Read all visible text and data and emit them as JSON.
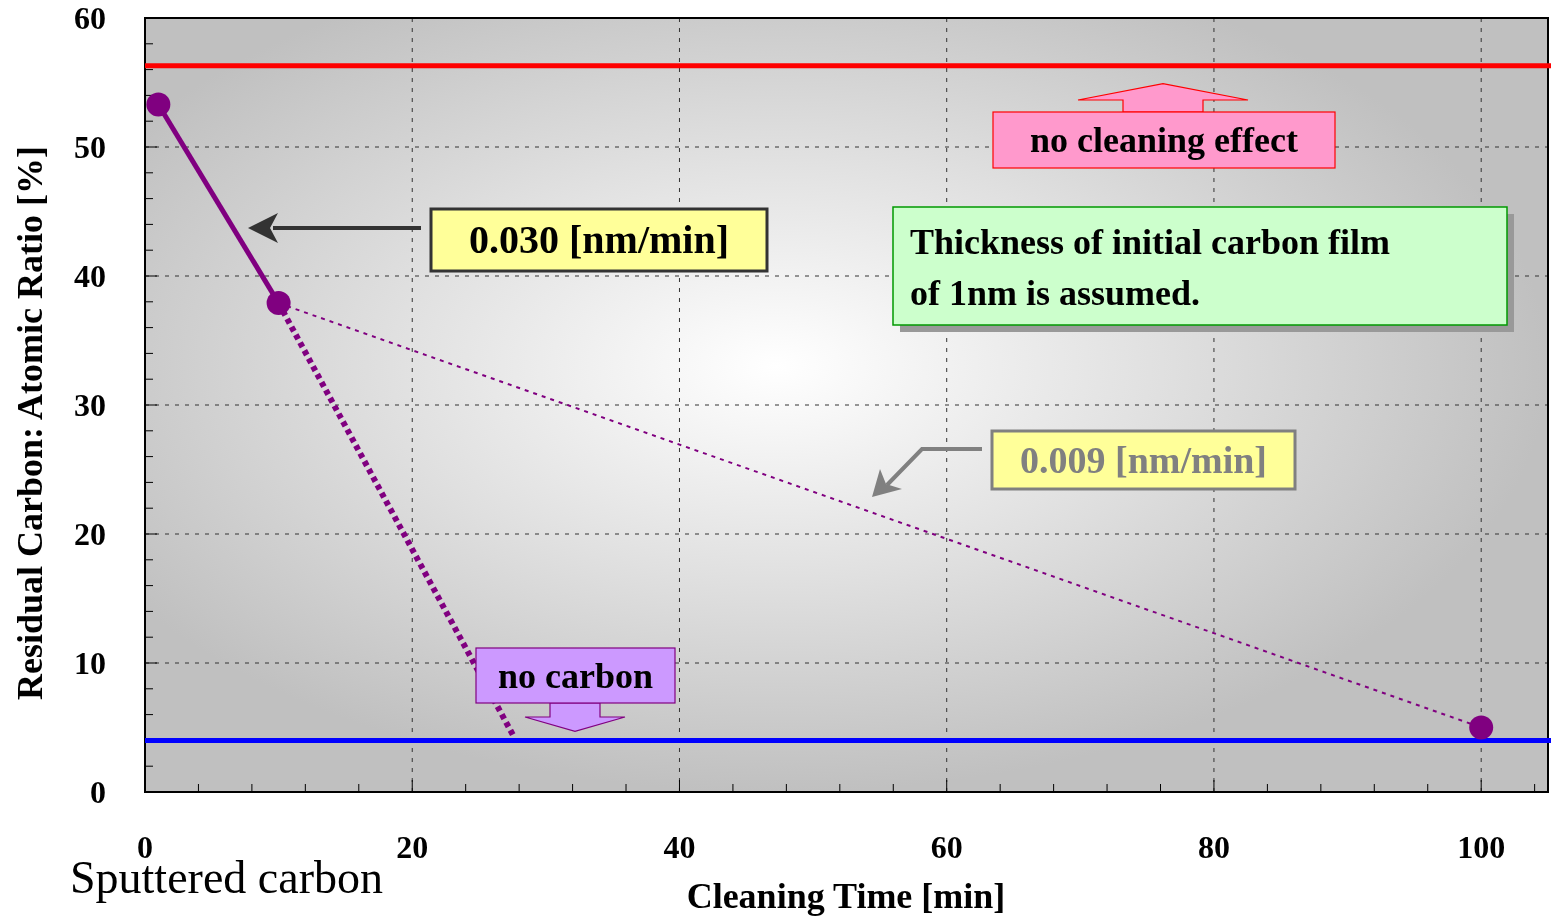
{
  "chart_data": {
    "type": "line",
    "xlabel": "Cleaning Time [min]",
    "ylabel": "Residual Carbon: Atomic Ratio [%]",
    "xlim": [
      0,
      105
    ],
    "ylim": [
      0,
      60
    ],
    "xticks": [
      0,
      {
        "value": 4,
        "label": null
      },
      {
        "value": 8,
        "label": null
      },
      {
        "value": 12,
        "label": null
      },
      {
        "value": 16,
        "label": null
      },
      20,
      {
        "value": 24,
        "label": null
      },
      {
        "value": 28,
        "label": null
      },
      {
        "value": 32,
        "label": null
      },
      {
        "value": 36,
        "label": null
      },
      40,
      {
        "value": 44,
        "label": null
      },
      {
        "value": 48,
        "label": null
      },
      {
        "value": 52,
        "label": null
      },
      {
        "value": 56,
        "label": null
      },
      60,
      {
        "value": 64,
        "label": null
      },
      {
        "value": 68,
        "label": null
      },
      {
        "value": 72,
        "label": null
      },
      {
        "value": 76,
        "label": null
      },
      80,
      {
        "value": 84,
        "label": null
      },
      {
        "value": 88,
        "label": null
      },
      {
        "value": 92,
        "label": null
      },
      {
        "value": 96,
        "label": null
      },
      100,
      {
        "value": 104,
        "label": null
      }
    ],
    "yticks": [
      0,
      {
        "value": 2,
        "label": null
      },
      {
        "value": 4,
        "label": null
      },
      {
        "value": 6,
        "label": null
      },
      {
        "value": 8,
        "label": null
      },
      10,
      {
        "value": 12,
        "label": null
      },
      {
        "value": 14,
        "label": null
      },
      {
        "value": 16,
        "label": null
      },
      {
        "value": 18,
        "label": null
      },
      20,
      {
        "value": 22,
        "label": null
      },
      {
        "value": 24,
        "label": null
      },
      {
        "value": 26,
        "label": null
      },
      {
        "value": 28,
        "label": null
      },
      30,
      {
        "value": 32,
        "label": null
      },
      {
        "value": 34,
        "label": null
      },
      {
        "value": 36,
        "label": null
      },
      {
        "value": 38,
        "label": null
      },
      40,
      {
        "value": 42,
        "label": null
      },
      {
        "value": 44,
        "label": null
      },
      {
        "value": 46,
        "label": null
      },
      {
        "value": 48,
        "label": null
      },
      50,
      {
        "value": 52,
        "label": null
      },
      {
        "value": 54,
        "label": null
      },
      {
        "value": 56,
        "label": null
      },
      {
        "value": 58,
        "label": null
      },
      60
    ],
    "grid": true,
    "series": [
      {
        "color": "#800080",
        "x": [
          1,
          10
        ],
        "values": [
          53.3,
          37.9
        ],
        "marker": "circle",
        "line_style": "solid"
      },
      {
        "type": "scatter",
        "color": "#800080",
        "x": [
          100
        ],
        "values": [
          5
        ],
        "marker": "circle"
      },
      {
        "color": "#800080",
        "x": [
          10,
          100
        ],
        "values": [
          37.9,
          5
        ],
        "marker": "none",
        "line_style": "dotted"
      },
      {
        "color": "#800080",
        "x": [
          10,
          27.6
        ],
        "values": [
          37.9,
          4.3
        ],
        "marker": "none",
        "line_style": "dotted"
      }
    ],
    "ref_lines": [
      {
        "axis": "y",
        "value": 56.3,
        "label": "no cleaning effect",
        "color": "#ff0000"
      },
      {
        "axis": "y",
        "value": 4,
        "label": "no carbon",
        "color": "#0000ff"
      }
    ],
    "annotations": [
      "0.030 [nm/min]",
      "0.009 [nm/min]",
      "Thickness of initial carbon film of 1nm is assumed.",
      "Sputtered carbon"
    ]
  }
}
